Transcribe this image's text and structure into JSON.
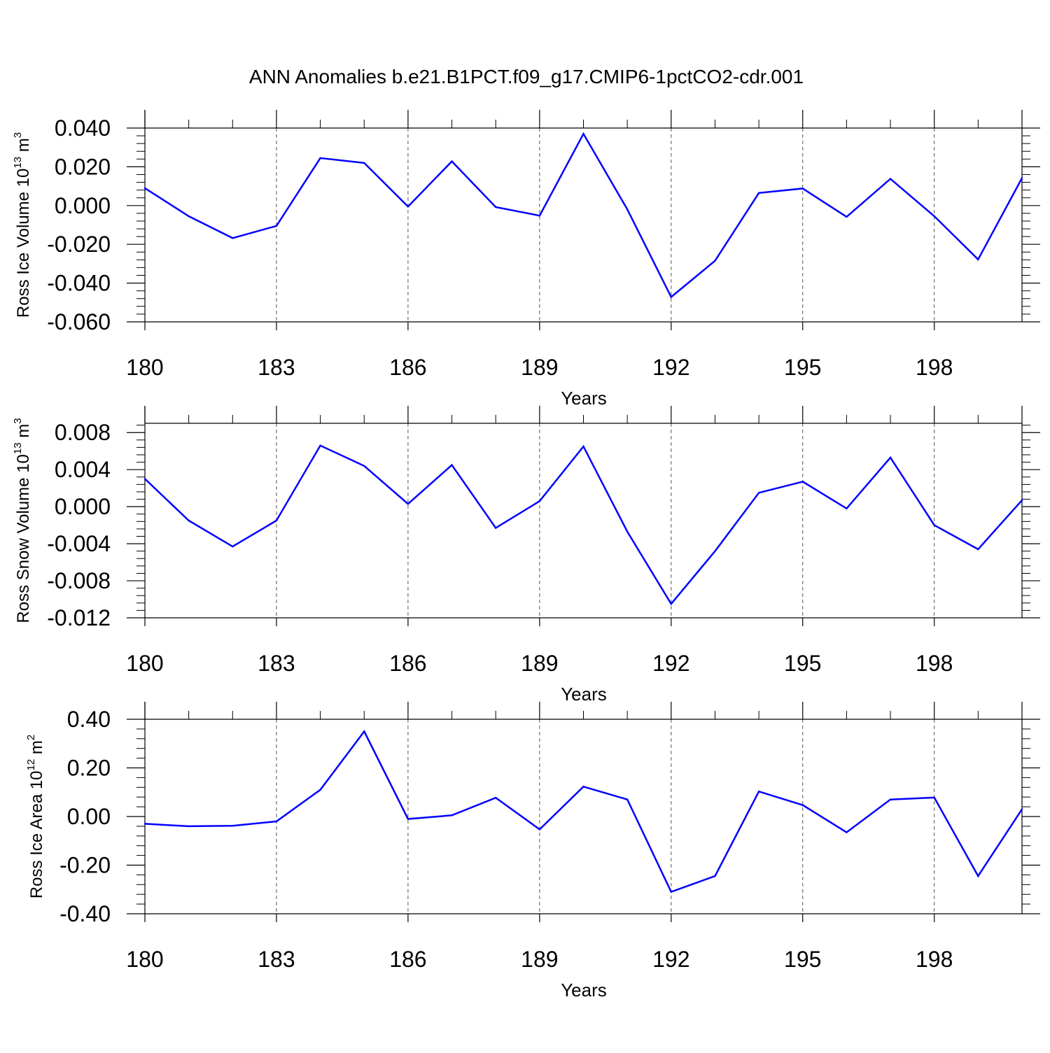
{
  "title": "ANN Anomalies b.e21.B1PCT.f09_g17.CMIP6-1pctCO2-cdr.001",
  "colors": {
    "line": "#0000ff",
    "axis": "#000000",
    "grid": "#555555"
  },
  "chart_data": [
    {
      "type": "line",
      "ylabel": {
        "prefix": "Ross Ice Volume 10",
        "exp": "13",
        "unit": " m",
        "unit_exp": "3"
      },
      "xlabel": "Years",
      "xlim": [
        180,
        200
      ],
      "ylim": [
        -0.06,
        0.04
      ],
      "yticks": [
        -0.06,
        -0.04,
        -0.02,
        0.0,
        0.02,
        0.04
      ],
      "ytick_labels": [
        "-0.060",
        "-0.040",
        "-0.020",
        "0.000",
        "0.020",
        "0.040"
      ],
      "xticks": [
        180,
        183,
        186,
        189,
        192,
        195,
        198
      ],
      "xtick_labels": [
        "180",
        "183",
        "186",
        "189",
        "192",
        "195",
        "198"
      ],
      "grid": "vertical dashed at major x ticks",
      "series": [
        {
          "x": [
            180,
            181,
            182,
            183,
            184,
            185,
            186,
            187,
            188,
            189,
            190,
            191,
            192,
            193,
            194,
            195,
            196,
            197,
            198,
            199,
            200
          ],
          "values": [
            0.009,
            -0.0055,
            -0.0168,
            -0.0105,
            0.0245,
            0.022,
            -0.0005,
            0.0228,
            -0.0008,
            -0.0052,
            0.037,
            -0.002,
            -0.0472,
            -0.0285,
            0.0065,
            0.0088,
            -0.0058,
            0.0138,
            -0.0055,
            -0.0278,
            0.0142
          ]
        }
      ]
    },
    {
      "type": "line",
      "ylabel": {
        "prefix": "Ross Snow Volume 10",
        "exp": "13",
        "unit": " m",
        "unit_exp": "3"
      },
      "xlabel": "Years",
      "xlim": [
        180,
        200
      ],
      "ylim": [
        -0.012,
        0.009
      ],
      "yticks": [
        -0.012,
        -0.008,
        -0.004,
        0.0,
        0.004,
        0.008
      ],
      "ytick_labels": [
        "-0.012",
        "-0.008",
        "-0.004",
        "0.000",
        "0.004",
        "0.008"
      ],
      "xticks": [
        180,
        183,
        186,
        189,
        192,
        195,
        198
      ],
      "xtick_labels": [
        "180",
        "183",
        "186",
        "189",
        "192",
        "195",
        "198"
      ],
      "grid": "vertical dashed at major x ticks",
      "series": [
        {
          "x": [
            180,
            181,
            182,
            183,
            184,
            185,
            186,
            187,
            188,
            189,
            190,
            191,
            192,
            193,
            194,
            195,
            196,
            197,
            198,
            199,
            200
          ],
          "values": [
            0.003,
            -0.0015,
            -0.0043,
            -0.0015,
            0.0066,
            0.0044,
            0.0003,
            0.0045,
            -0.0023,
            0.0006,
            0.0065,
            -0.0027,
            -0.0105,
            -0.0048,
            0.0015,
            0.0027,
            -0.0002,
            0.0053,
            -0.002,
            -0.0046,
            0.0007
          ]
        }
      ]
    },
    {
      "type": "line",
      "ylabel": {
        "prefix": "Ross Ice Area 10",
        "exp": "12",
        "unit": " m",
        "unit_exp": "2"
      },
      "xlabel": "Years",
      "xlim": [
        180,
        200
      ],
      "ylim": [
        -0.4,
        0.4
      ],
      "yticks": [
        -0.4,
        -0.2,
        0.0,
        0.2,
        0.4
      ],
      "ytick_labels": [
        "-0.40",
        "-0.20",
        "0.00",
        "0.20",
        "0.40"
      ],
      "xticks": [
        180,
        183,
        186,
        189,
        192,
        195,
        198
      ],
      "xtick_labels": [
        "180",
        "183",
        "186",
        "189",
        "192",
        "195",
        "198"
      ],
      "grid": "vertical dashed at major x ticks",
      "series": [
        {
          "x": [
            180,
            181,
            182,
            183,
            184,
            185,
            186,
            187,
            188,
            189,
            190,
            191,
            192,
            193,
            194,
            195,
            196,
            197,
            198,
            199,
            200
          ],
          "values": [
            -0.03,
            -0.04,
            -0.038,
            -0.02,
            0.11,
            0.35,
            -0.01,
            0.005,
            0.077,
            -0.053,
            0.123,
            0.07,
            -0.31,
            -0.245,
            0.103,
            0.047,
            -0.065,
            0.07,
            0.078,
            -0.245,
            0.03
          ]
        }
      ]
    }
  ]
}
